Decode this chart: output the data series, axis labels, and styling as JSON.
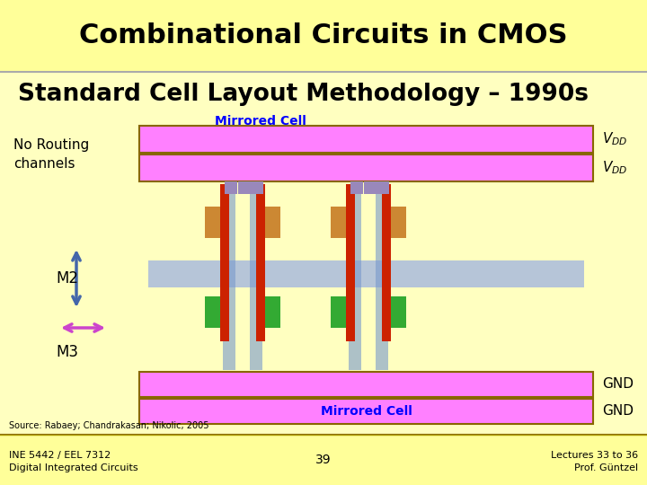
{
  "title": "Combinational Circuits in CMOS",
  "subtitle": "Standard Cell Layout Methodology – 1990s",
  "title_bg": "#FFFF99",
  "slide_bg": "#FFFFC0",
  "footer_bg": "#FFFF99",
  "mirrored_cell_label_top": "Mirrored Cell",
  "mirrored_cell_label_bottom": "Mirrored Cell",
  "no_routing_text": "No Routing\nchannels",
  "m2_label": "M2",
  "m3_label": "M3",
  "vdd_label": "V",
  "vdd_sub": "DD",
  "gnd_label": "GND",
  "source_text": "Source: Rabaey; Chandrakasan; Nikolic, 2005",
  "footer_left": "INE 5442 / EEL 7312\nDigital Integrated Circuits",
  "footer_center": "39",
  "footer_right": "Lectures 33 to 36\nProf. Güntzel",
  "pink": "#FF80FF",
  "pink_dark": "#CC66CC",
  "blue_light": "#AABBDD",
  "blue_medium": "#7799CC",
  "red_bar": "#CC2200",
  "orange_bar": "#CC8833",
  "green_bar": "#33AA33",
  "purple_bar": "#9988BB",
  "arrow_blue": "#4466AA",
  "arrow_magenta": "#CC44CC"
}
